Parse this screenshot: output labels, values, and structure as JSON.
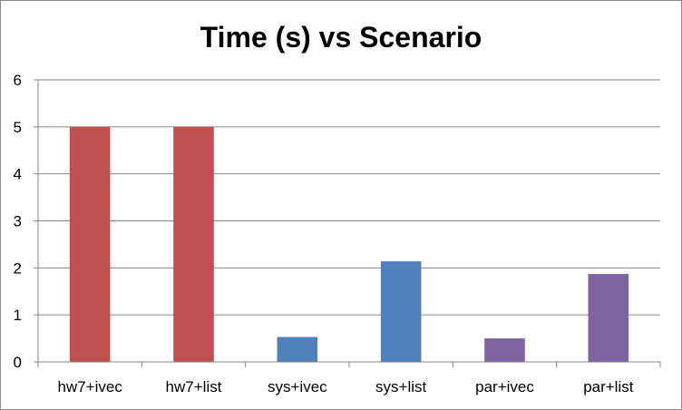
{
  "chart_data": {
    "type": "bar",
    "title": "Time (s) vs Scenario",
    "xlabel": "",
    "ylabel": "",
    "categories": [
      "hw7+ivec",
      "hw7+list",
      "sys+ivec",
      "sys+list",
      "par+ivec",
      "par+list"
    ],
    "values": [
      5.0,
      5.0,
      0.53,
      2.14,
      0.5,
      1.87
    ],
    "colors": [
      "#c0504d",
      "#c0504d",
      "#4f81bd",
      "#4f81bd",
      "#8064a2",
      "#8064a2"
    ],
    "ylim": [
      0,
      6
    ],
    "yticks": [
      "0",
      "1",
      "2",
      "3",
      "4",
      "5",
      "6"
    ],
    "grid": true,
    "legend": "none"
  }
}
